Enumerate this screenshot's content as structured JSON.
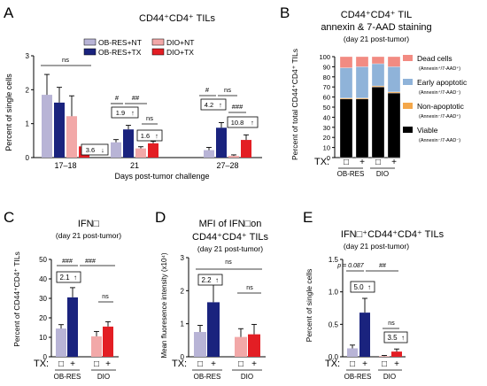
{
  "colors": {
    "ob_nt": "#b8b4d6",
    "ob_tx": "#1a237e",
    "dio_nt": "#f2a8a8",
    "dio_tx": "#e31e24",
    "dead": "#f28b82",
    "early": "#8fb3d9",
    "nonapop": "#f4a74a",
    "viable": "#000000"
  },
  "panels": {
    "A": {
      "letter": "A",
      "title": "CD44⁺CD4⁺ TILs",
      "ylabel": "Percent of single cells",
      "xlabel": "Days post-tumor challenge",
      "legend": [
        "OB-RES+NT",
        "OB-RES+TX",
        "DIO+NT",
        "DIO+TX"
      ],
      "annotations": [
        "ns",
        "#",
        "##",
        "1.9",
        "ns",
        "1.6",
        "3.6",
        "#",
        "ns",
        "4.2",
        "###",
        "10.8"
      ]
    },
    "B": {
      "letter": "B",
      "title1": "CD44⁺CD4⁺ TIL",
      "title2": "annexin & 7-AAD staining",
      "subtitle": "(day 21 post-tumor)",
      "ylabel": "Percent of total CD44⁺CD4⁺ TILs",
      "legend": [
        {
          "label": "Dead cells",
          "sub": "(Annexin⁺/7-AAD⁺)"
        },
        {
          "label": "Early apoptotic",
          "sub": "(Annexin⁺/7-AAD⁻)"
        },
        {
          "label": "Non-apoptotic",
          "sub": "(Annexin⁻/7-AAD⁺)"
        },
        {
          "label": "Viable",
          "sub": "(Annexin⁻/7-AAD⁻)"
        }
      ],
      "tx_label": "TX:",
      "tx_marks": [
        "□",
        "+",
        "□",
        "+"
      ],
      "groups": [
        "OB-RES",
        "DIO"
      ]
    },
    "C": {
      "letter": "C",
      "title": "IFN□",
      "subtitle": "(day 21 post-tumor)",
      "ylabel": "Percent of CD44⁺CD4⁺ TILs",
      "annotations": [
        "###",
        "###",
        "2.1",
        "ns"
      ],
      "tx_label": "TX:",
      "tx_marks": [
        "□",
        "+",
        "□",
        "+"
      ],
      "groups": [
        "OB-RES",
        "DIO"
      ]
    },
    "D": {
      "letter": "D",
      "title1": "MFI of IFN□on",
      "title2": "CD44⁺CD4⁺ TILs",
      "subtitle": "(day 21 post-tumor)",
      "ylabel": "Mean fluoresence intensity (x10⁴)",
      "annotations": [
        "ns",
        "2.2",
        "ns"
      ],
      "tx_label": "TX:",
      "tx_marks": [
        "□",
        "+",
        "□",
        "+"
      ],
      "groups": [
        "OB-RES",
        "DIO"
      ]
    },
    "E": {
      "letter": "E",
      "title": "IFN□⁺CD44⁺CD4⁺ TILs",
      "subtitle": "(day 21 post-tumor)",
      "ylabel": "Percent of single cells",
      "annotations": [
        "p = 0.087",
        "##",
        "5.0",
        "ns",
        "3.5"
      ],
      "tx_label": "TX:",
      "tx_marks": [
        "□",
        "+",
        "□",
        "+"
      ],
      "groups": [
        "OB-RES",
        "DIO"
      ]
    }
  },
  "chart_data": [
    {
      "panel": "A",
      "type": "bar",
      "title": "CD44⁺CD4⁺ TILs",
      "xlabel": "Days post-tumor challenge",
      "ylabel": "Percent of single cells",
      "categories": [
        "17–18",
        "21",
        "27–28"
      ],
      "ylim": [
        0,
        3
      ],
      "yticks": [
        0,
        1,
        2,
        3
      ],
      "series": [
        {
          "name": "OB-RES+NT",
          "values": [
            1.85,
            0.45,
            0.22
          ],
          "errors": [
            0.6,
            0.08,
            0.08
          ]
        },
        {
          "name": "OB-RES+TX",
          "values": [
            1.62,
            0.83,
            0.88
          ],
          "errors": [
            0.45,
            0.12,
            0.15
          ]
        },
        {
          "name": "DIO+NT",
          "values": [
            1.22,
            0.27,
            0.05
          ],
          "errors": [
            0.6,
            0.05,
            0.03
          ]
        },
        {
          "name": "DIO+TX",
          "values": [
            0.33,
            0.42,
            0.52
          ],
          "errors": [
            0.05,
            0.06,
            0.15
          ]
        }
      ]
    },
    {
      "panel": "B",
      "type": "bar",
      "stacked": true,
      "title": "CD44⁺CD4⁺ TIL annexin & 7-AAD staining",
      "ylabel": "Percent of total CD44⁺CD4⁺ TILs",
      "categories": [
        "OB-RES □",
        "OB-RES +",
        "DIO □",
        "DIO +"
      ],
      "ylim": [
        0,
        100
      ],
      "yticks": [
        0,
        10,
        20,
        30,
        40,
        50,
        60,
        70,
        80,
        90,
        100
      ],
      "series": [
        {
          "name": "Viable",
          "values": [
            58,
            58,
            70,
            64
          ]
        },
        {
          "name": "Non-apoptotic",
          "values": [
            1,
            1,
            1,
            1
          ]
        },
        {
          "name": "Early apoptotic",
          "values": [
            30,
            31,
            22,
            25
          ]
        },
        {
          "name": "Dead cells",
          "values": [
            11,
            10,
            7,
            10
          ]
        }
      ]
    },
    {
      "panel": "C",
      "type": "bar",
      "title": "IFN□",
      "ylabel": "Percent of CD44⁺CD4⁺ TILs",
      "categories": [
        "OB-RES □",
        "OB-RES +",
        "DIO □",
        "DIO +"
      ],
      "ylim": [
        0,
        50
      ],
      "yticks": [
        0,
        10,
        20,
        30,
        40,
        50
      ],
      "values": [
        14.5,
        30.5,
        10.5,
        15.5
      ],
      "errors": [
        2,
        5,
        2.5,
        2.5
      ]
    },
    {
      "panel": "D",
      "type": "bar",
      "title": "MFI of IFN□on CD44⁺CD4⁺ TILs",
      "ylabel": "Mean fluoresence intensity (x10⁴)",
      "categories": [
        "OB-RES □",
        "OB-RES +",
        "DIO □",
        "DIO +"
      ],
      "ylim": [
        0,
        3
      ],
      "yticks": [
        0,
        1,
        2,
        3
      ],
      "values": [
        0.75,
        1.65,
        0.6,
        0.68
      ],
      "errors": [
        0.2,
        0.55,
        0.25,
        0.3
      ]
    },
    {
      "panel": "E",
      "type": "bar",
      "title": "IFN□⁺CD44⁺CD4⁺ TILs",
      "ylabel": "Percent of single cells",
      "categories": [
        "OB-RES □",
        "OB-RES +",
        "DIO □",
        "DIO +"
      ],
      "ylim": [
        0,
        1.5
      ],
      "yticks": [
        0.0,
        0.5,
        1.0,
        1.5
      ],
      "values": [
        0.13,
        0.68,
        0.01,
        0.08
      ],
      "errors": [
        0.05,
        0.22,
        0.01,
        0.04
      ]
    }
  ]
}
